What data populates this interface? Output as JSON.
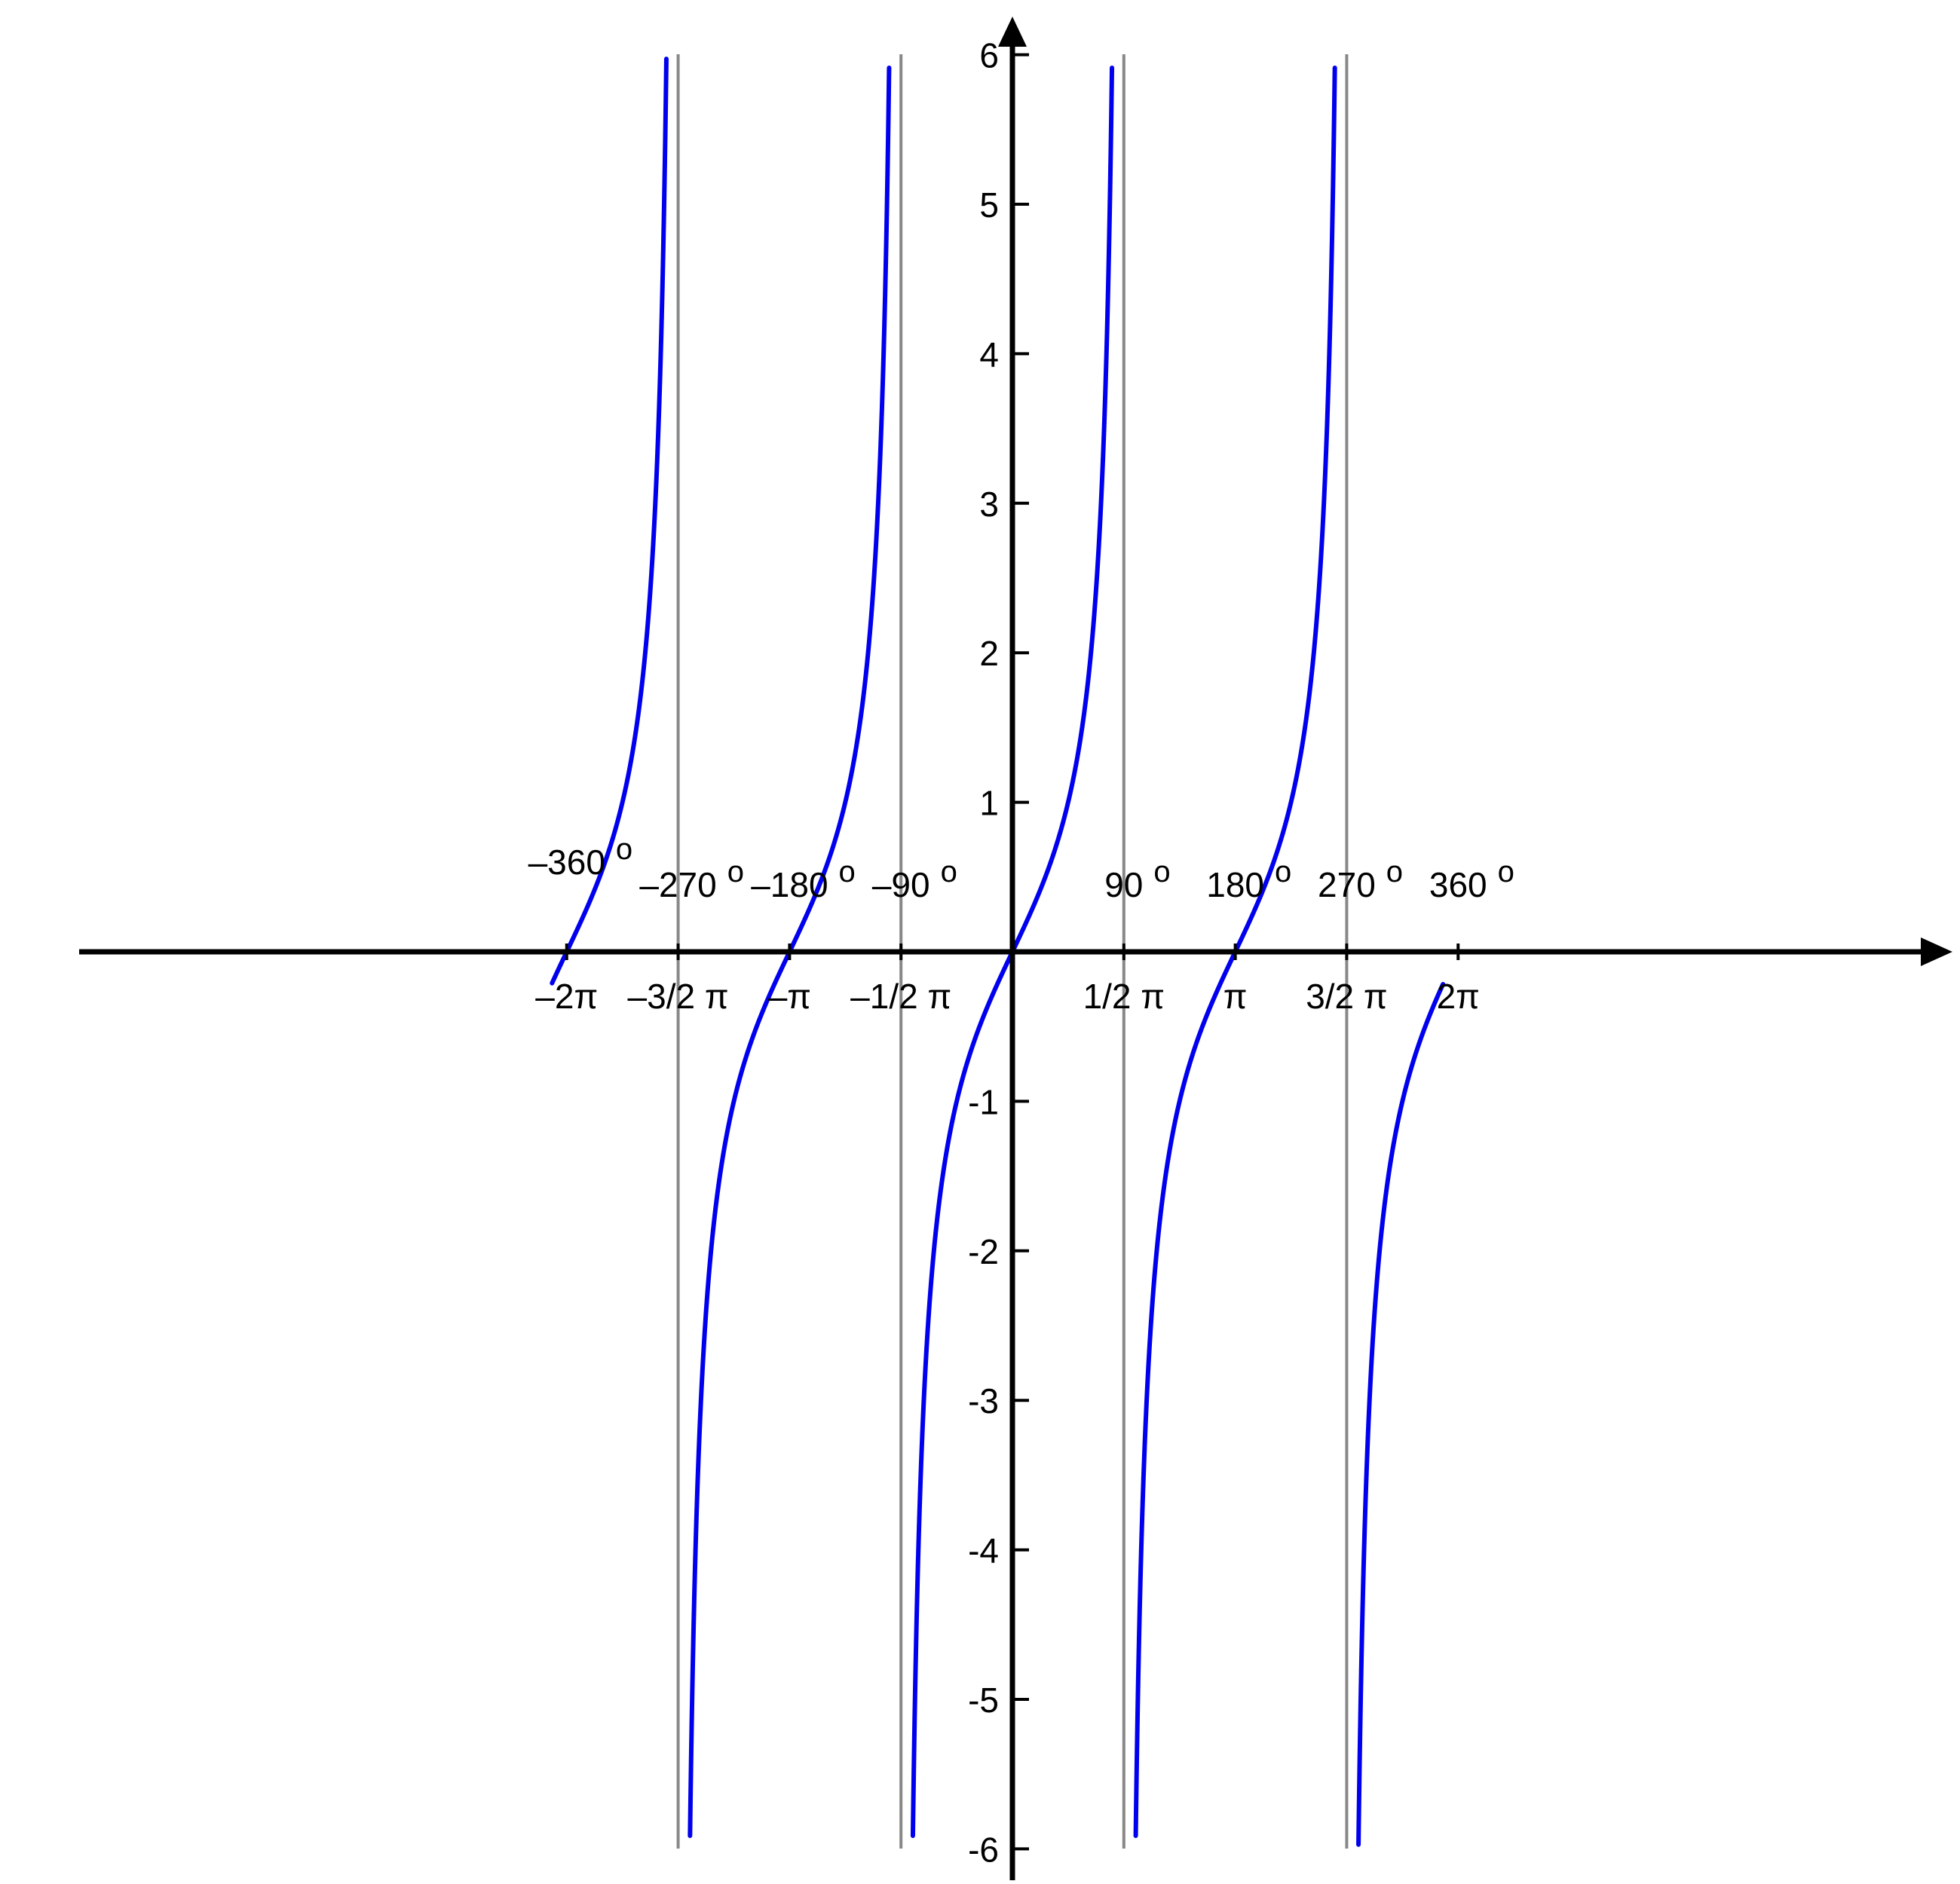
{
  "chart_data": {
    "type": "line",
    "function": "tan(x)",
    "title": "",
    "xlabel": "",
    "ylabel": "",
    "xlim": [
      -6.49,
      6.07
    ],
    "ylim": [
      -6,
      6
    ],
    "grid": false,
    "legend": "none",
    "series": [
      {
        "color": "#0000ee",
        "x": [
          -6.49,
          -6.2832,
          -6.0,
          -5.5,
          -5.0,
          -4.8,
          -4.72,
          -4.3,
          -4.0,
          -3.7,
          -3.1416,
          -2.8,
          -2.4,
          -2.0,
          -1.735,
          -1.58,
          -1.4,
          -1.2,
          -1.0,
          -0.6,
          0,
          0.6,
          1.0,
          1.2,
          1.4,
          1.405,
          1.736,
          2.0,
          2.5,
          3.1416,
          3.7,
          4.0,
          4.4,
          4.546,
          4.88,
          5.0,
          5.5,
          6.0,
          6.2832,
          6.07
        ],
        "y_description": "y = tan(x)"
      }
    ],
    "asymptotes_x": [
      -4.7124,
      -1.5708,
      1.5708,
      4.7124
    ],
    "x_ticks_radians": [
      {
        "value": -6.2832,
        "label": "–2π",
        "degree": "–360",
        "sup": "o"
      },
      {
        "value": -4.7124,
        "label": "–3/2 π",
        "degree": "–270",
        "sup": "o"
      },
      {
        "value": -3.1416,
        "label": "–π",
        "degree": "–180",
        "sup": "o"
      },
      {
        "value": -1.5708,
        "label": "–1/2 π",
        "degree": "–90",
        "sup": "o"
      },
      {
        "value": 1.5708,
        "label": "1/2 π",
        "degree": "90",
        "sup": "o"
      },
      {
        "value": 3.1416,
        "label": "π",
        "degree": "180",
        "sup": "o"
      },
      {
        "value": 4.7124,
        "label": "3/2 π",
        "degree": "270",
        "sup": "o"
      },
      {
        "value": 6.2832,
        "label": "2π",
        "degree": "360",
        "sup": "o"
      }
    ],
    "y_ticks": [
      {
        "value": 6,
        "label": "6"
      },
      {
        "value": 5,
        "label": "5"
      },
      {
        "value": 4,
        "label": "4"
      },
      {
        "value": 3,
        "label": "3"
      },
      {
        "value": 2,
        "label": "2"
      },
      {
        "value": 1,
        "label": "1"
      },
      {
        "value": -1,
        "label": "-1"
      },
      {
        "value": -2,
        "label": "-2"
      },
      {
        "value": -3,
        "label": "-3"
      },
      {
        "value": -4,
        "label": "-4"
      },
      {
        "value": -5,
        "label": "-5"
      },
      {
        "value": -6,
        "label": "-6"
      }
    ],
    "colors": {
      "curve": "#0000ee",
      "axes": "#000000",
      "asymptote": "#888888"
    }
  }
}
